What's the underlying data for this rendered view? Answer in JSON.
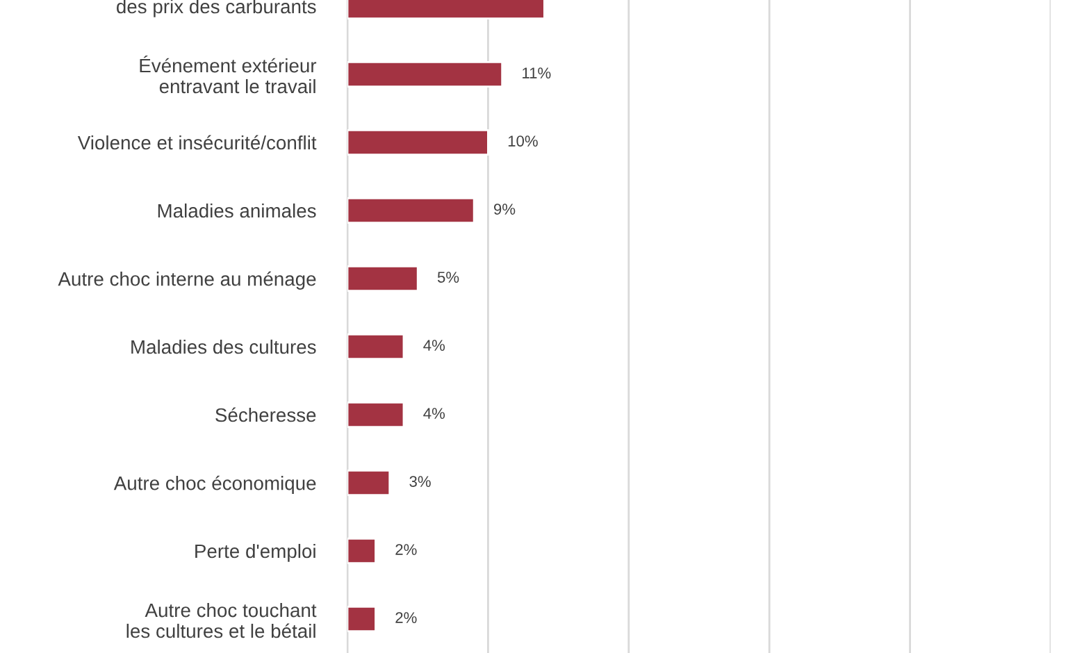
{
  "chart_data": {
    "type": "bar",
    "orientation": "horizontal",
    "categories": [
      "des prix des carburants",
      "Événement extérieur\nentravant le travail",
      "Violence et insécurité/conflit",
      "Maladies animales",
      "Autre choc interne au ménage",
      "Maladies des cultures",
      "Sécheresse",
      "Autre choc économique",
      "Perte d'emploi",
      "Autre choc touchant\nles cultures et le bétail"
    ],
    "values": [
      14,
      11,
      10,
      9,
      5,
      4,
      4,
      3,
      2,
      2
    ],
    "value_labels": [
      null,
      "11%",
      "10%",
      "9%",
      "5%",
      "4%",
      "4%",
      "3%",
      "2%",
      "2%"
    ],
    "color": "#a33342",
    "xlim": [
      0,
      50
    ],
    "xticks": [
      {
        "value": 0,
        "label": null
      },
      {
        "value": 10,
        "label": null
      },
      {
        "value": 20,
        "label": null
      },
      {
        "value": 30,
        "label": null
      },
      {
        "value": 40,
        "label": null
      },
      {
        "value": 50,
        "label": null
      }
    ],
    "grid": "x",
    "tick_labels": "y",
    "legend": false
  }
}
